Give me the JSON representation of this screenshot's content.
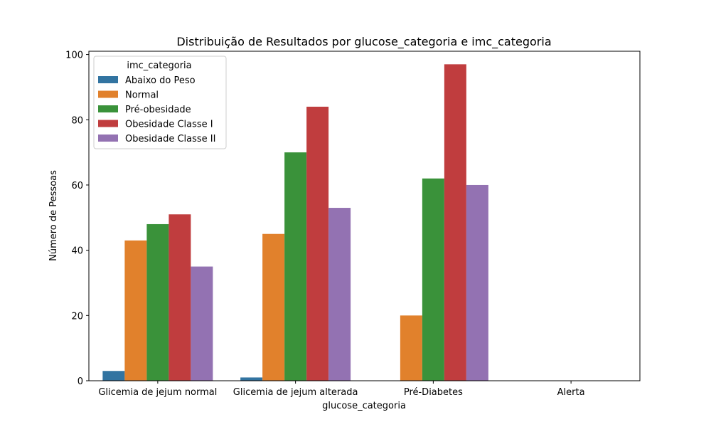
{
  "chart_data": {
    "type": "bar",
    "title": "Distribuição de Resultados por glucose_categoria e imc_categoria",
    "xlabel": "glucose_categoria",
    "ylabel": "Número de Pessoas",
    "categories": [
      "Glicemia de jejum normal",
      "Glicemia de jejum alterada",
      "Pré-Diabetes",
      "Alerta"
    ],
    "ylim": [
      0,
      101
    ],
    "yticks": [
      0,
      20,
      40,
      60,
      80,
      100
    ],
    "grid": false,
    "legend": {
      "title": "imc_categoria",
      "placement": "top-left"
    },
    "series": [
      {
        "name": "Abaixo do Peso",
        "color": "#3274a1",
        "values": [
          3,
          1,
          0,
          0
        ]
      },
      {
        "name": "Normal",
        "color": "#e1812c",
        "values": [
          43,
          45,
          20,
          0
        ]
      },
      {
        "name": "Pré-obesidade",
        "color": "#3a923a",
        "values": [
          48,
          70,
          62,
          0
        ]
      },
      {
        "name": "Obesidade Classe I",
        "color": "#c03d3e",
        "values": [
          51,
          84,
          97,
          0
        ]
      },
      {
        "name": "Obesidade Classe II",
        "color": "#9372b2",
        "values": [
          35,
          53,
          60,
          0
        ]
      }
    ]
  }
}
